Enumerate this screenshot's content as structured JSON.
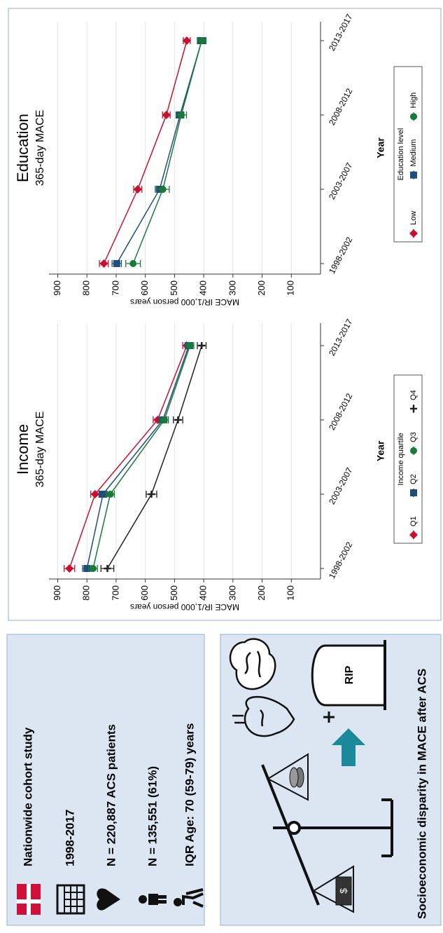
{
  "info": {
    "items": [
      "Nationwide cohort study",
      "1998-2017",
      "N = 220,887 ACS patients",
      "N = 135,551 (61%)",
      "IQR Age: 70 (59-79) years"
    ]
  },
  "summary": {
    "caption": "Socioeconomic disparity in MACE after ACS",
    "tombstone": "RIP"
  },
  "chart_data": [
    {
      "type": "line",
      "title": "Income",
      "subtitle": "365-day MACE",
      "x_label": "Year",
      "y_label": "MACE IR/1,000 person years",
      "categories": [
        "1998-2002",
        "2003-2007",
        "2008-2012",
        "2013-2017"
      ],
      "ylim": [
        0,
        930
      ],
      "yticks": [
        100,
        200,
        300,
        400,
        500,
        600,
        700,
        800,
        900
      ],
      "grid": true,
      "legend_title": "Income quartile",
      "series": [
        {
          "name": "Q1",
          "color": "#c8102e",
          "marker": "diamond",
          "values": [
            860,
            772,
            558,
            458
          ],
          "errors": [
            18,
            15,
            15,
            14
          ]
        },
        {
          "name": "Q2",
          "color": "#1f4e79",
          "marker": "square",
          "values": [
            800,
            745,
            540,
            451
          ],
          "errors": [
            15,
            14,
            14,
            13
          ]
        },
        {
          "name": "Q3",
          "color": "#1a7a3a",
          "marker": "circle",
          "values": [
            779,
            720,
            535,
            447
          ],
          "errors": [
            15,
            14,
            14,
            13
          ]
        },
        {
          "name": "Q4",
          "color": "#222222",
          "marker": "plus",
          "values": [
            730,
            579,
            488,
            407
          ],
          "errors": [
            22,
            18,
            16,
            15
          ]
        }
      ]
    },
    {
      "type": "line",
      "title": "Education",
      "subtitle": "365-day MACE",
      "x_label": "Year",
      "y_label": "MACE IR/1,000 person years",
      "categories": [
        "1998-2002",
        "2003-2007",
        "2008-2012",
        "2013-2017"
      ],
      "ylim": [
        0,
        930
      ],
      "yticks": [
        100,
        200,
        300,
        400,
        500,
        600,
        700,
        800,
        900
      ],
      "grid": true,
      "legend_title": "Education level",
      "series": [
        {
          "name": "Low",
          "color": "#c8102e",
          "marker": "diamond",
          "values": [
            742,
            626,
            528,
            458
          ],
          "errors": [
            15,
            14,
            13,
            12
          ]
        },
        {
          "name": "Medium",
          "color": "#1f4e79",
          "marker": "square",
          "values": [
            698,
            551,
            481,
            407
          ],
          "errors": [
            16,
            15,
            13,
            12
          ]
        },
        {
          "name": "High",
          "color": "#1a7a3a",
          "marker": "circle",
          "values": [
            642,
            540,
            477,
            407
          ],
          "errors": [
            25,
            22,
            18,
            15
          ]
        }
      ]
    }
  ]
}
